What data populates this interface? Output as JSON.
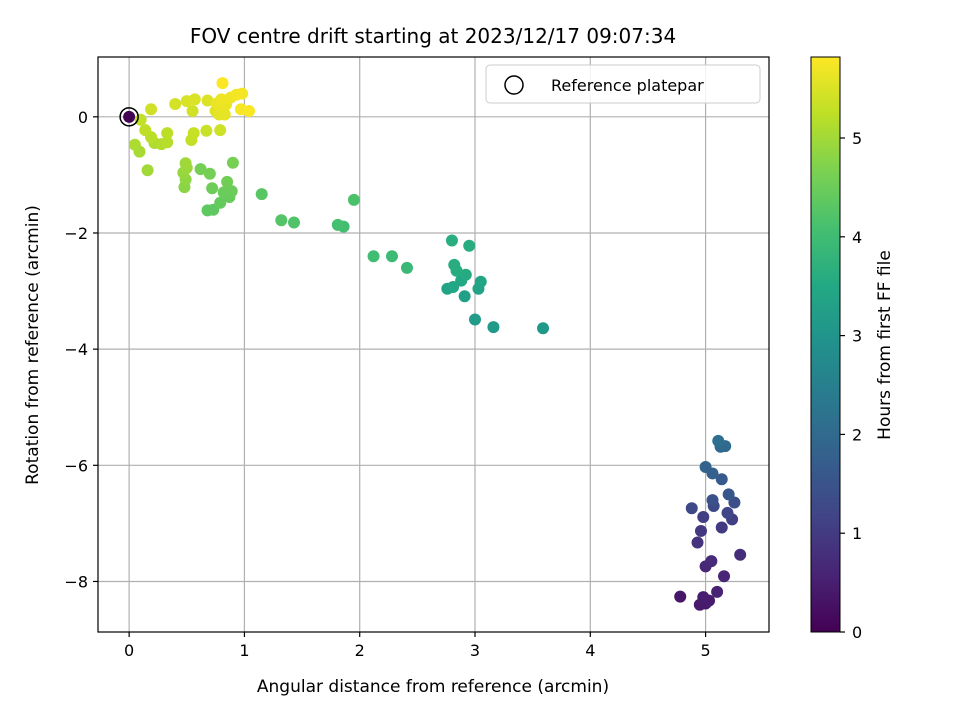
{
  "chart_data": {
    "type": "scatter",
    "title": "FOV centre drift starting at 2023/12/17 09:07:34",
    "xlabel": "Angular distance from reference (arcmin)",
    "ylabel": "Rotation from reference (arcmin)",
    "xlim": [
      -0.27,
      5.55
    ],
    "ylim": [
      -8.87,
      1.03
    ],
    "xticks": [
      0,
      1,
      2,
      3,
      4,
      5
    ],
    "yticks": [
      0,
      -2,
      -4,
      -6,
      -8
    ],
    "grid": true,
    "legend": {
      "placement": "top-right",
      "entries": [
        "Reference platepar"
      ]
    },
    "reference_point": {
      "x": 0,
      "y": 0
    },
    "colorbar": {
      "label": "Hours from first FF file",
      "range": [
        0,
        5.82
      ],
      "ticks": [
        0,
        1,
        2,
        3,
        4,
        5
      ],
      "colormap": "viridis"
    },
    "points": [
      {
        "x": 0.0,
        "y": 0.0,
        "c": 0.02
      },
      {
        "x": 4.78,
        "y": -8.26,
        "c": 0.35
      },
      {
        "x": 4.95,
        "y": -8.4,
        "c": 0.4
      },
      {
        "x": 5.0,
        "y": -8.38,
        "c": 0.42
      },
      {
        "x": 5.03,
        "y": -8.33,
        "c": 0.45
      },
      {
        "x": 4.98,
        "y": -8.27,
        "c": 0.48
      },
      {
        "x": 5.1,
        "y": -8.18,
        "c": 0.55
      },
      {
        "x": 5.16,
        "y": -7.91,
        "c": 0.6
      },
      {
        "x": 5.0,
        "y": -7.74,
        "c": 0.65
      },
      {
        "x": 5.05,
        "y": -7.65,
        "c": 0.7
      },
      {
        "x": 5.3,
        "y": -7.54,
        "c": 0.75
      },
      {
        "x": 4.93,
        "y": -7.33,
        "c": 0.85
      },
      {
        "x": 4.96,
        "y": -7.13,
        "c": 0.95
      },
      {
        "x": 5.14,
        "y": -7.07,
        "c": 1.0
      },
      {
        "x": 4.98,
        "y": -6.89,
        "c": 1.05
      },
      {
        "x": 5.23,
        "y": -6.93,
        "c": 1.1
      },
      {
        "x": 5.19,
        "y": -6.82,
        "c": 1.2
      },
      {
        "x": 4.88,
        "y": -6.74,
        "c": 1.25
      },
      {
        "x": 5.07,
        "y": -6.7,
        "c": 1.3
      },
      {
        "x": 5.25,
        "y": -6.64,
        "c": 1.4
      },
      {
        "x": 5.06,
        "y": -6.6,
        "c": 1.45
      },
      {
        "x": 5.2,
        "y": -6.5,
        "c": 1.55
      },
      {
        "x": 5.14,
        "y": -6.24,
        "c": 1.65
      },
      {
        "x": 5.06,
        "y": -6.14,
        "c": 1.75
      },
      {
        "x": 5.0,
        "y": -6.03,
        "c": 1.85
      },
      {
        "x": 5.13,
        "y": -5.68,
        "c": 1.95
      },
      {
        "x": 5.17,
        "y": -5.67,
        "c": 2.02
      },
      {
        "x": 5.11,
        "y": -5.58,
        "c": 2.1
      },
      {
        "x": 3.59,
        "y": -3.64,
        "c": 3.1
      },
      {
        "x": 3.16,
        "y": -3.62,
        "c": 3.15
      },
      {
        "x": 3.0,
        "y": -3.49,
        "c": 3.2
      },
      {
        "x": 2.91,
        "y": -3.09,
        "c": 3.3
      },
      {
        "x": 3.03,
        "y": -2.96,
        "c": 3.35
      },
      {
        "x": 2.76,
        "y": -2.96,
        "c": 3.4
      },
      {
        "x": 2.81,
        "y": -2.93,
        "c": 3.45
      },
      {
        "x": 3.05,
        "y": -2.84,
        "c": 3.42
      },
      {
        "x": 2.88,
        "y": -2.82,
        "c": 3.5
      },
      {
        "x": 2.92,
        "y": -2.72,
        "c": 3.55
      },
      {
        "x": 2.84,
        "y": -2.65,
        "c": 3.58
      },
      {
        "x": 2.82,
        "y": -2.55,
        "c": 3.6
      },
      {
        "x": 2.95,
        "y": -2.22,
        "c": 3.62
      },
      {
        "x": 2.8,
        "y": -2.13,
        "c": 3.65
      },
      {
        "x": 2.41,
        "y": -2.6,
        "c": 3.9
      },
      {
        "x": 2.28,
        "y": -2.4,
        "c": 3.95
      },
      {
        "x": 2.12,
        "y": -2.4,
        "c": 4.0
      },
      {
        "x": 1.86,
        "y": -1.89,
        "c": 4.05
      },
      {
        "x": 1.81,
        "y": -1.86,
        "c": 4.08
      },
      {
        "x": 1.95,
        "y": -1.43,
        "c": 4.15
      },
      {
        "x": 1.43,
        "y": -1.82,
        "c": 4.2
      },
      {
        "x": 1.32,
        "y": -1.78,
        "c": 4.25
      },
      {
        "x": 1.15,
        "y": -1.33,
        "c": 4.3
      },
      {
        "x": 0.68,
        "y": -1.61,
        "c": 4.35
      },
      {
        "x": 0.73,
        "y": -1.6,
        "c": 4.38
      },
      {
        "x": 0.79,
        "y": -1.48,
        "c": 4.42
      },
      {
        "x": 0.87,
        "y": -1.38,
        "c": 4.45
      },
      {
        "x": 0.82,
        "y": -1.3,
        "c": 4.48
      },
      {
        "x": 0.89,
        "y": -1.28,
        "c": 4.5
      },
      {
        "x": 0.72,
        "y": -1.23,
        "c": 4.52
      },
      {
        "x": 0.85,
        "y": -1.12,
        "c": 4.55
      },
      {
        "x": 0.7,
        "y": -0.98,
        "c": 4.58
      },
      {
        "x": 0.62,
        "y": -0.9,
        "c": 4.6
      },
      {
        "x": 0.9,
        "y": -0.79,
        "c": 4.62
      },
      {
        "x": 0.48,
        "y": -1.21,
        "c": 4.8
      },
      {
        "x": 0.49,
        "y": -1.08,
        "c": 4.85
      },
      {
        "x": 0.47,
        "y": -0.96,
        "c": 4.9
      },
      {
        "x": 0.5,
        "y": -0.88,
        "c": 4.95
      },
      {
        "x": 0.49,
        "y": -0.8,
        "c": 4.98
      },
      {
        "x": 0.16,
        "y": -0.92,
        "c": 5.0
      },
      {
        "x": 0.09,
        "y": -0.6,
        "c": 5.05
      },
      {
        "x": 0.05,
        "y": -0.48,
        "c": 5.1
      },
      {
        "x": 0.22,
        "y": -0.45,
        "c": 5.12
      },
      {
        "x": 0.28,
        "y": -0.47,
        "c": 5.15
      },
      {
        "x": 0.33,
        "y": -0.44,
        "c": 5.18
      },
      {
        "x": 0.19,
        "y": -0.35,
        "c": 5.2
      },
      {
        "x": 0.33,
        "y": -0.28,
        "c": 5.22
      },
      {
        "x": 0.14,
        "y": -0.23,
        "c": 5.25
      },
      {
        "x": 0.1,
        "y": -0.05,
        "c": 5.28
      },
      {
        "x": 0.54,
        "y": -0.4,
        "c": 5.3
      },
      {
        "x": 0.56,
        "y": -0.28,
        "c": 5.32
      },
      {
        "x": 0.67,
        "y": -0.24,
        "c": 5.35
      },
      {
        "x": 0.79,
        "y": -0.23,
        "c": 5.38
      },
      {
        "x": 0.19,
        "y": 0.13,
        "c": 5.4
      },
      {
        "x": 0.55,
        "y": 0.1,
        "c": 5.42
      },
      {
        "x": 0.4,
        "y": 0.22,
        "c": 5.45
      },
      {
        "x": 0.5,
        "y": 0.27,
        "c": 5.48
      },
      {
        "x": 0.57,
        "y": 0.3,
        "c": 5.5
      },
      {
        "x": 0.68,
        "y": 0.28,
        "c": 5.52
      },
      {
        "x": 0.75,
        "y": 0.1,
        "c": 5.55
      },
      {
        "x": 0.78,
        "y": 0.04,
        "c": 5.58
      },
      {
        "x": 0.83,
        "y": 0.04,
        "c": 5.6
      },
      {
        "x": 0.8,
        "y": 0.15,
        "c": 5.62
      },
      {
        "x": 0.84,
        "y": 0.21,
        "c": 5.64
      },
      {
        "x": 0.76,
        "y": 0.23,
        "c": 5.66
      },
      {
        "x": 0.8,
        "y": 0.3,
        "c": 5.68
      },
      {
        "x": 0.88,
        "y": 0.33,
        "c": 5.7
      },
      {
        "x": 0.93,
        "y": 0.38,
        "c": 5.72
      },
      {
        "x": 0.98,
        "y": 0.4,
        "c": 5.74
      },
      {
        "x": 0.97,
        "y": 0.13,
        "c": 5.76
      },
      {
        "x": 1.04,
        "y": 0.1,
        "c": 5.78
      },
      {
        "x": 0.81,
        "y": 0.58,
        "c": 5.8
      }
    ]
  }
}
